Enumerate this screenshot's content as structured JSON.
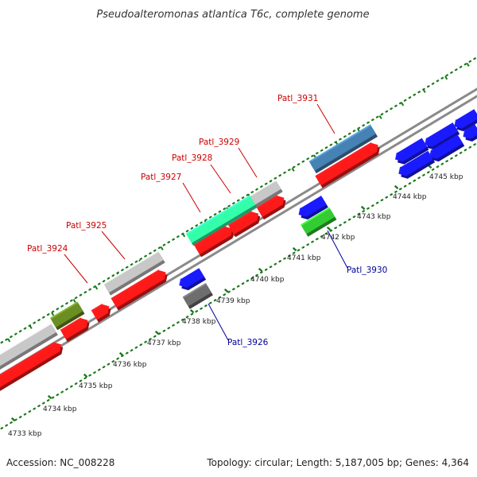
{
  "title": "Pseudoalteromonas atlantica T6c, complete genome",
  "footer": {
    "accession": "Accession: NC_008228",
    "summary": "Topology: circular; Length: 5,187,005 bp; Genes: 4,364"
  },
  "colors": {
    "forward_label": "#cc0000",
    "reverse_label": "#000099",
    "backbone": "#8a8a8a",
    "tick": "#1a7a1a"
  },
  "kbp_labels": [
    "4733 kbp",
    "4734 kbp",
    "4735 kbp",
    "4736 kbp",
    "4737 kbp",
    "4738 kbp",
    "4739 kbp",
    "4740 kbp",
    "4741 kbp",
    "4742 kbp",
    "4743 kbp",
    "4744 kbp",
    "4745 kbp"
  ],
  "labeled_genes": [
    {
      "name": "Patl_3924",
      "strand": "forward"
    },
    {
      "name": "Patl_3925",
      "strand": "forward"
    },
    {
      "name": "Patl_3926",
      "strand": "reverse"
    },
    {
      "name": "Patl_3927",
      "strand": "forward"
    },
    {
      "name": "Patl_3928",
      "strand": "forward"
    },
    {
      "name": "Patl_3929",
      "strand": "forward"
    },
    {
      "name": "Patl_3930",
      "strand": "reverse"
    },
    {
      "name": "Patl_3931",
      "strand": "forward"
    }
  ],
  "gene_colors": {
    "red": "#ff1a1a",
    "grey": "#c8c8c8",
    "olive": "#6b8e23",
    "aqua": "#33ffaa",
    "steel": "#4682b4",
    "blue": "#1a1aff",
    "darkgrey": "#6e6e6e",
    "green": "#33cc33"
  }
}
